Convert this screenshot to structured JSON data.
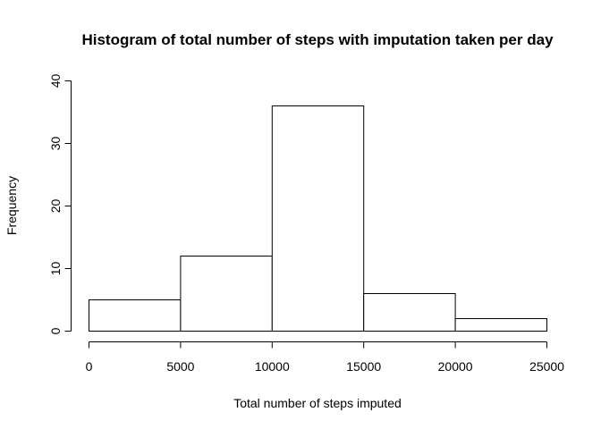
{
  "chart_data": {
    "type": "bar",
    "subtype": "histogram",
    "title": "Histogram of total number of steps with imputation taken per day",
    "xlabel": "Total number of steps imputed",
    "ylabel": "Frequency",
    "bins": [
      {
        "from": 0,
        "to": 5000,
        "count": 5
      },
      {
        "from": 5000,
        "to": 10000,
        "count": 12
      },
      {
        "from": 10000,
        "to": 15000,
        "count": 36
      },
      {
        "from": 15000,
        "to": 20000,
        "count": 6
      },
      {
        "from": 20000,
        "to": 25000,
        "count": 2
      }
    ],
    "xlim": [
      0,
      25000
    ],
    "ylim": [
      0,
      40
    ],
    "x_ticks": [
      0,
      5000,
      10000,
      15000,
      20000,
      25000
    ],
    "y_ticks": [
      0,
      10,
      20,
      30,
      40
    ],
    "grid": false,
    "legend": "none",
    "colors": {
      "bar_fill": "#ffffff",
      "bar_stroke": "#000000",
      "axis": "#000000"
    }
  }
}
